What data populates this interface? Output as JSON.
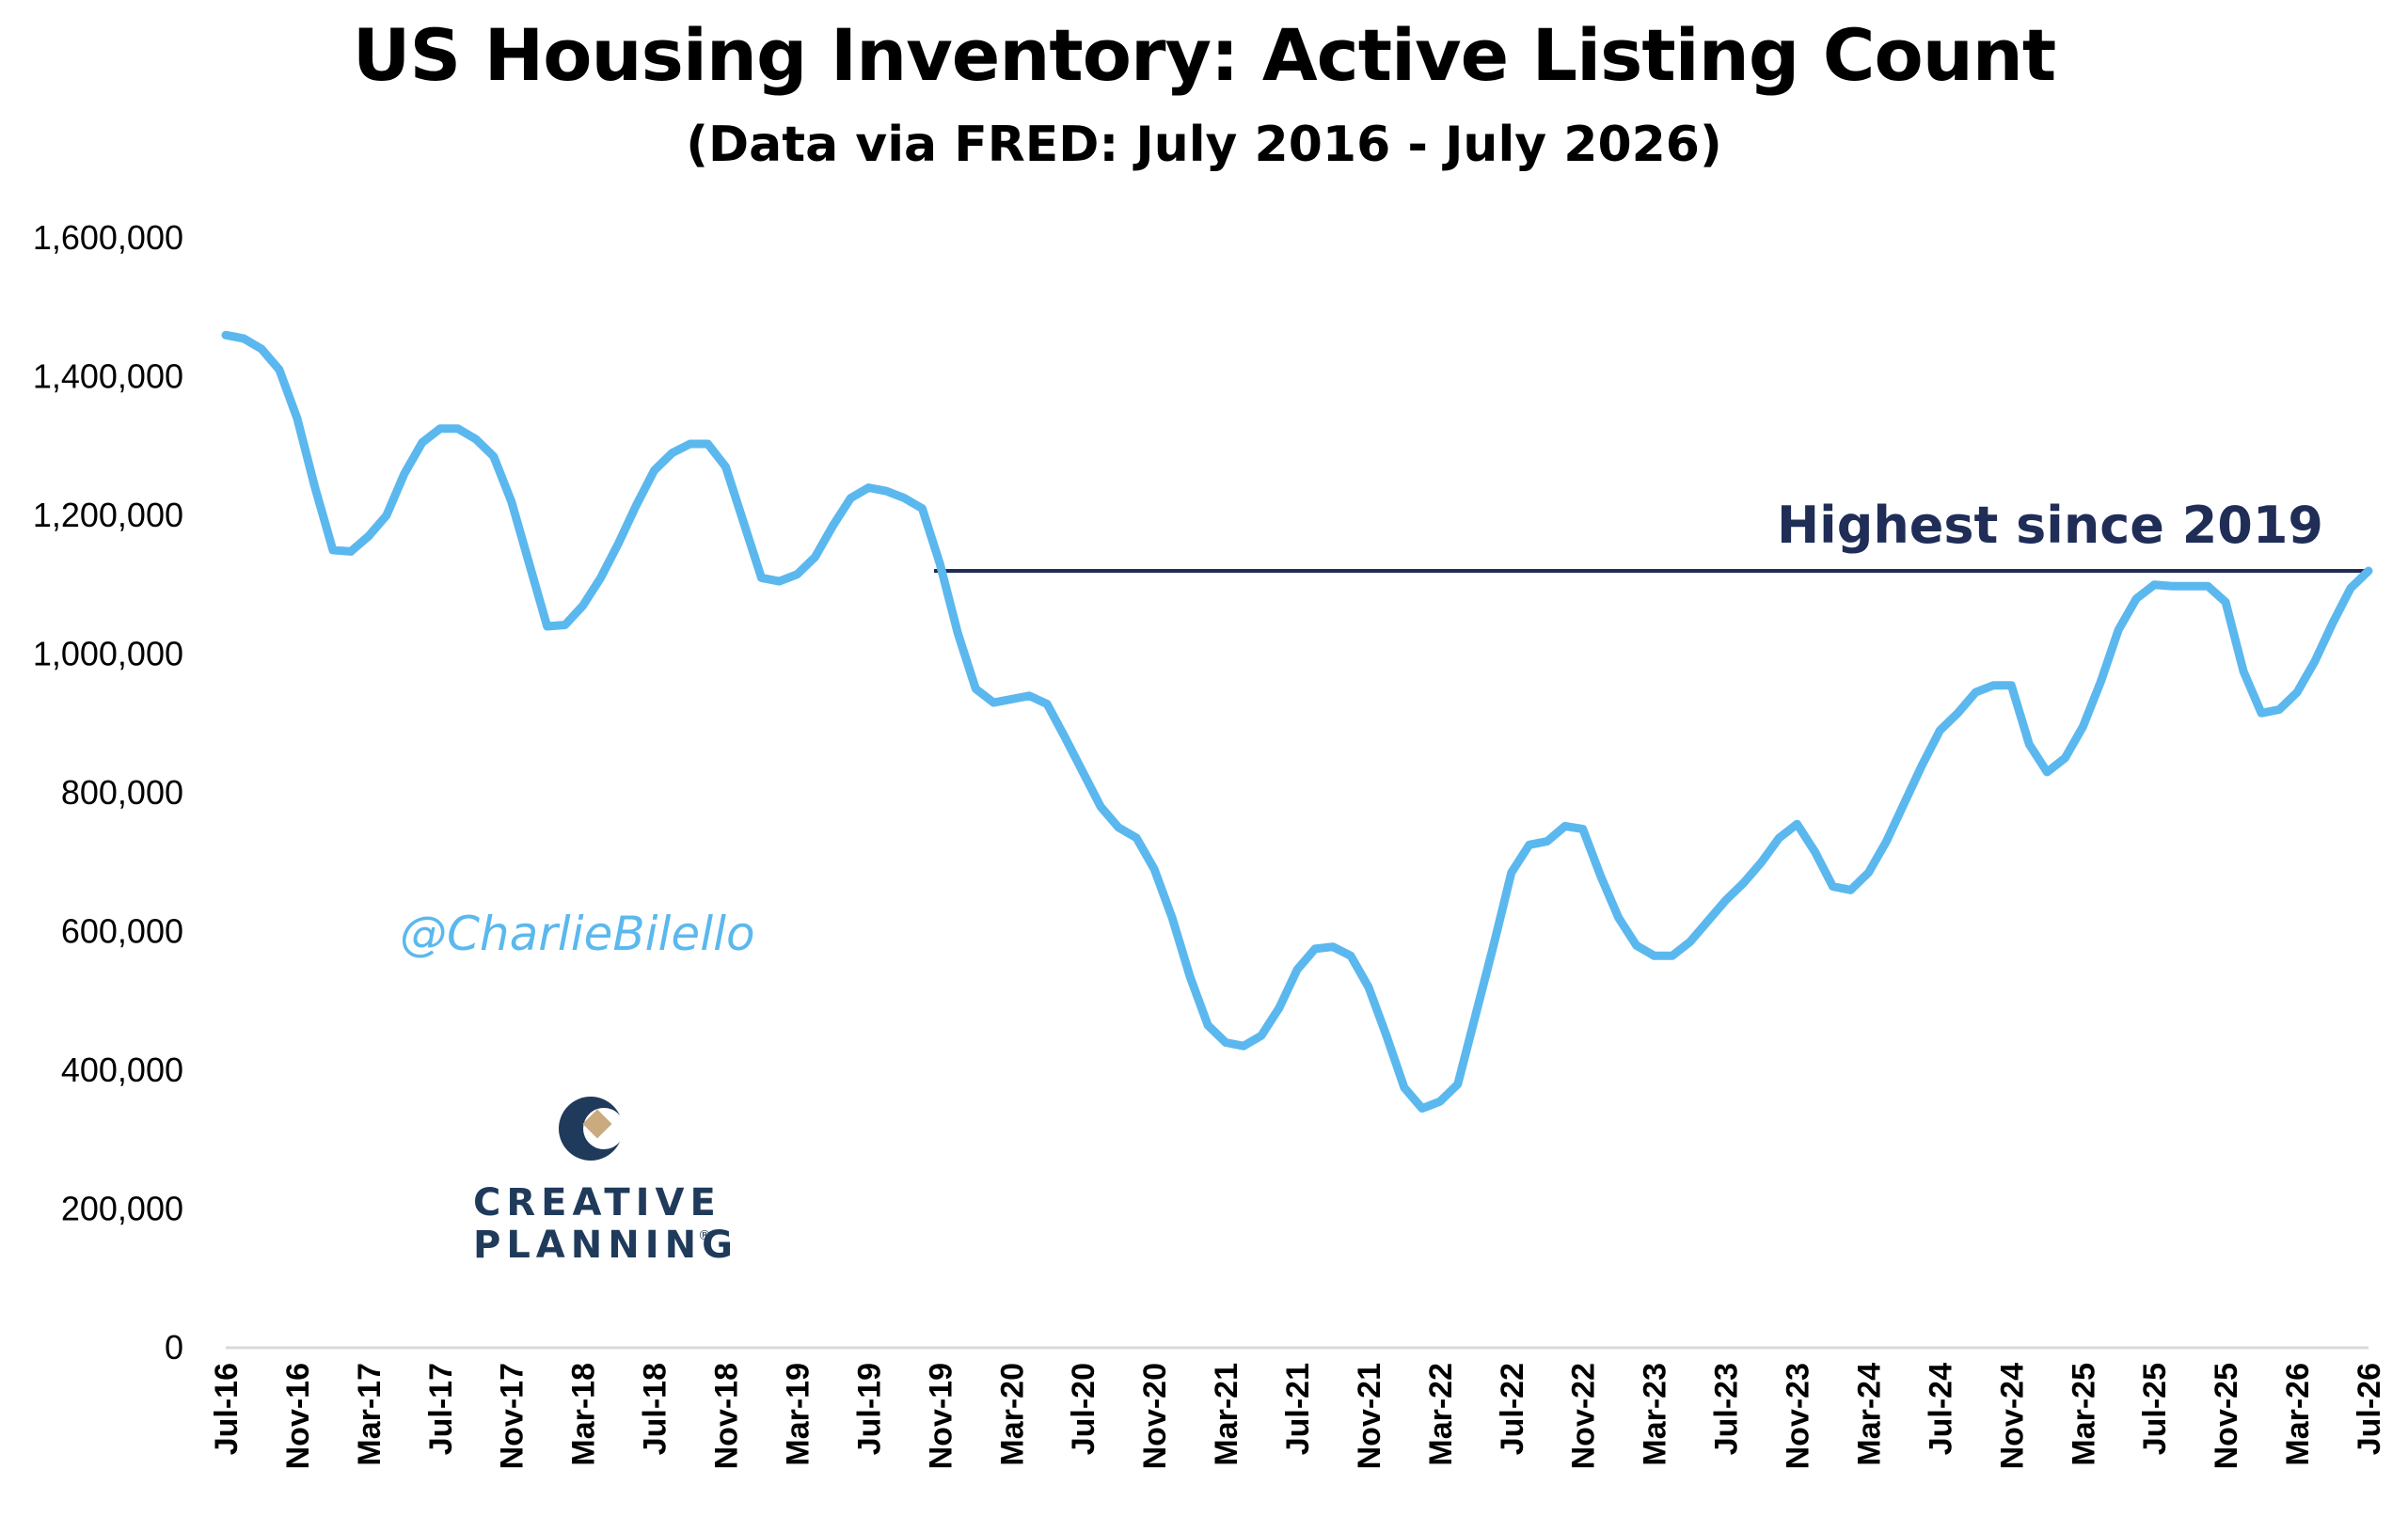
{
  "chart_data": {
    "type": "line",
    "title": "US Housing Inventory: Active Listing Count",
    "subtitle": "(Data via FRED: July 2016 - July 2026)",
    "xlabel": "",
    "ylabel": "",
    "ylim": [
      0,
      1600000
    ],
    "yticks": [
      "0",
      "200,000",
      "400,000",
      "600,000",
      "800,000",
      "1,000,000",
      "1,200,000",
      "1,400,000",
      "1,600,000"
    ],
    "xtick_labels": [
      "Jul-16",
      "Nov-16",
      "Mar-17",
      "Jul-17",
      "Nov-17",
      "Mar-18",
      "Jul-18",
      "Nov-18",
      "Mar-19",
      "Jul-19",
      "Nov-19",
      "Mar-20",
      "Jul-20",
      "Nov-20",
      "Mar-21",
      "Jul-21",
      "Nov-21",
      "Mar-22",
      "Jul-22",
      "Nov-22",
      "Mar-23",
      "Jul-23",
      "Nov-23",
      "Mar-24",
      "Jul-24",
      "Nov-24",
      "Mar-25",
      "Jul-25",
      "Nov-25",
      "Mar-26",
      "Jul-26"
    ],
    "grid": false,
    "line_color": "#5bb8ee",
    "series": [
      {
        "values": [
          1460000,
          1455000,
          1440000,
          1410000,
          1340000,
          1240000,
          1150000,
          1148000,
          1170000,
          1200000,
          1260000,
          1305000,
          1325000,
          1325000,
          1310000,
          1285000,
          1220000,
          1130000,
          1040000,
          1042000,
          1070000,
          1110000,
          1160000,
          1215000,
          1265000,
          1290000,
          1303000,
          1303000,
          1270000,
          1190000,
          1110000,
          1105000,
          1115000,
          1140000,
          1185000,
          1225000,
          1240000,
          1235000,
          1225000,
          1210000,
          1130000,
          1030000,
          950000,
          930000,
          935000,
          940000,
          928000,
          880000,
          830000,
          780000,
          750000,
          735000,
          690000,
          620000,
          535000,
          465000,
          440000,
          435000,
          450000,
          490000,
          545000,
          575000,
          578000,
          565000,
          520000,
          450000,
          375000,
          345000,
          355000,
          380000,
          480000,
          580000,
          685000,
          725000,
          730000,
          752000,
          748000,
          680000,
          620000,
          580000,
          565000,
          565000,
          585000,
          615000,
          645000,
          670000,
          700000,
          735000,
          755000,
          715000,
          665000,
          660000,
          685000,
          730000,
          785000,
          840000,
          890000,
          915000,
          945000,
          955000,
          955000,
          870000,
          830000,
          850000,
          895000,
          960000,
          1035000,
          1080000,
          1100000,
          1098000,
          1098000,
          1098000,
          1075000,
          975000,
          915000,
          920000,
          945000,
          990000,
          1045000,
          1095000,
          1120000
        ]
      }
    ],
    "annotations": [
      {
        "text": "Highest since 2019",
        "line_value": 1120000,
        "line_color": "#1f2d57"
      }
    ]
  },
  "watermark": {
    "handle": "@CharlieBilello",
    "brand_line1": "CREATIVE",
    "brand_line2": "PLANNING",
    "brand_mark": "®"
  }
}
